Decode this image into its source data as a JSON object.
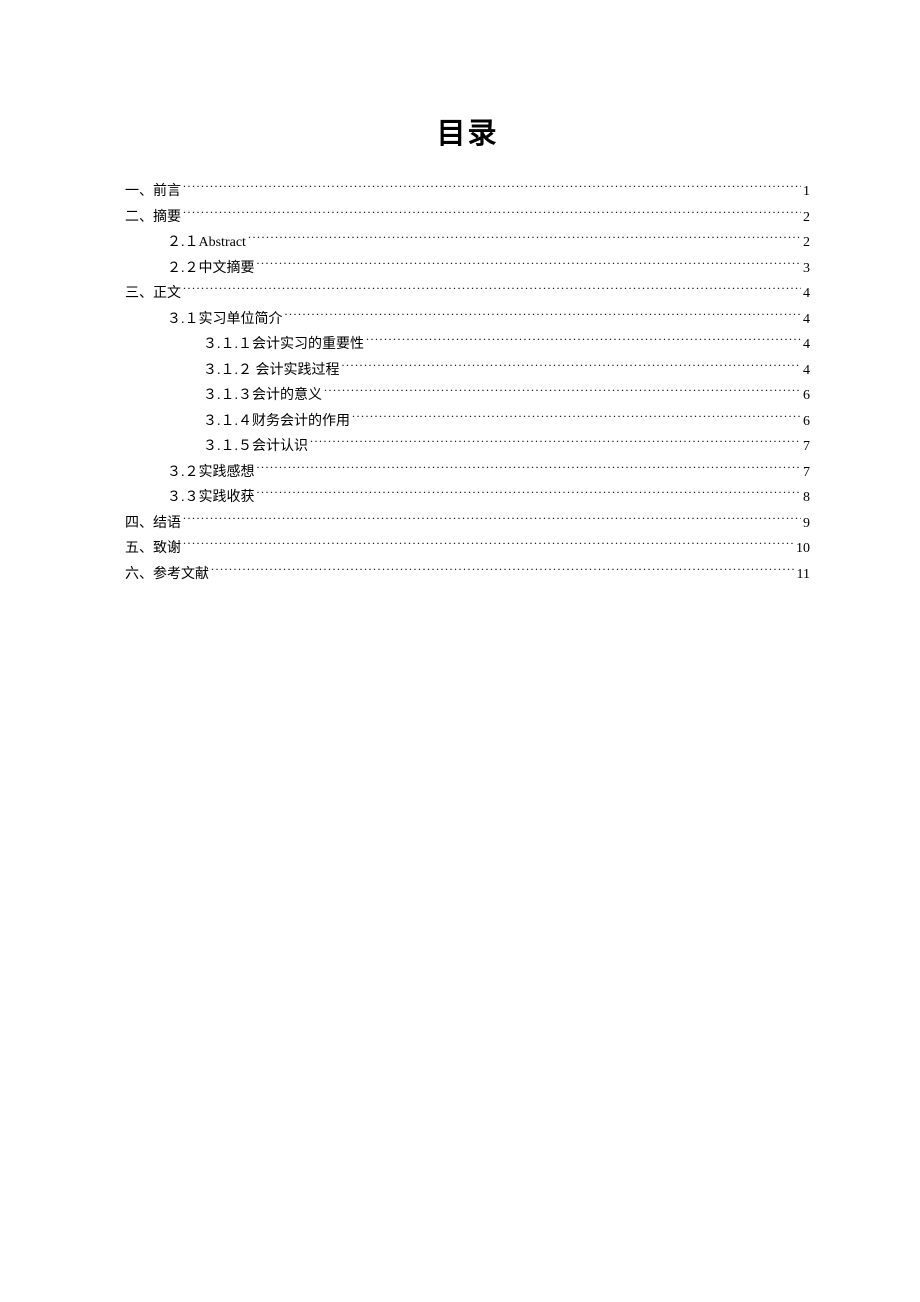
{
  "title": "目录",
  "text_color": "#000000",
  "background_color": "#ffffff",
  "title_fontsize": 29,
  "body_fontsize": 14,
  "entries": [
    {
      "level": 0,
      "label": "一、前言",
      "page": "1"
    },
    {
      "level": 0,
      "label": "二、摘要",
      "page": "2"
    },
    {
      "level": 1,
      "label": "２.１Abstract",
      "page": "2"
    },
    {
      "level": 1,
      "label": "２.２中文摘要",
      "page": "3"
    },
    {
      "level": 0,
      "label": "三、正文",
      "page": "4"
    },
    {
      "level": 1,
      "label": "３.１实习单位简介",
      "page": "4"
    },
    {
      "level": 2,
      "label": "３.１.１会计实习的重要性",
      "page": "4"
    },
    {
      "level": 2,
      "label": "３.１.２ 会计实践过程",
      "page": "4"
    },
    {
      "level": 2,
      "label": "３.１.３会计的意义",
      "page": "6"
    },
    {
      "level": 2,
      "label": "３.１.４财务会计的作用",
      "page": "6"
    },
    {
      "level": 2,
      "label": "３.１.５会计认识",
      "page": "7"
    },
    {
      "level": 1,
      "label": "３.２实践感想",
      "page": "7"
    },
    {
      "level": 1,
      "label": "３.３实践收获",
      "page": "8"
    },
    {
      "level": 0,
      "label": "四、结语",
      "page": "9"
    },
    {
      "level": 0,
      "label": "五、致谢",
      "page": "10"
    },
    {
      "level": 0,
      "label": "六、参考文献",
      "page": "11"
    }
  ]
}
